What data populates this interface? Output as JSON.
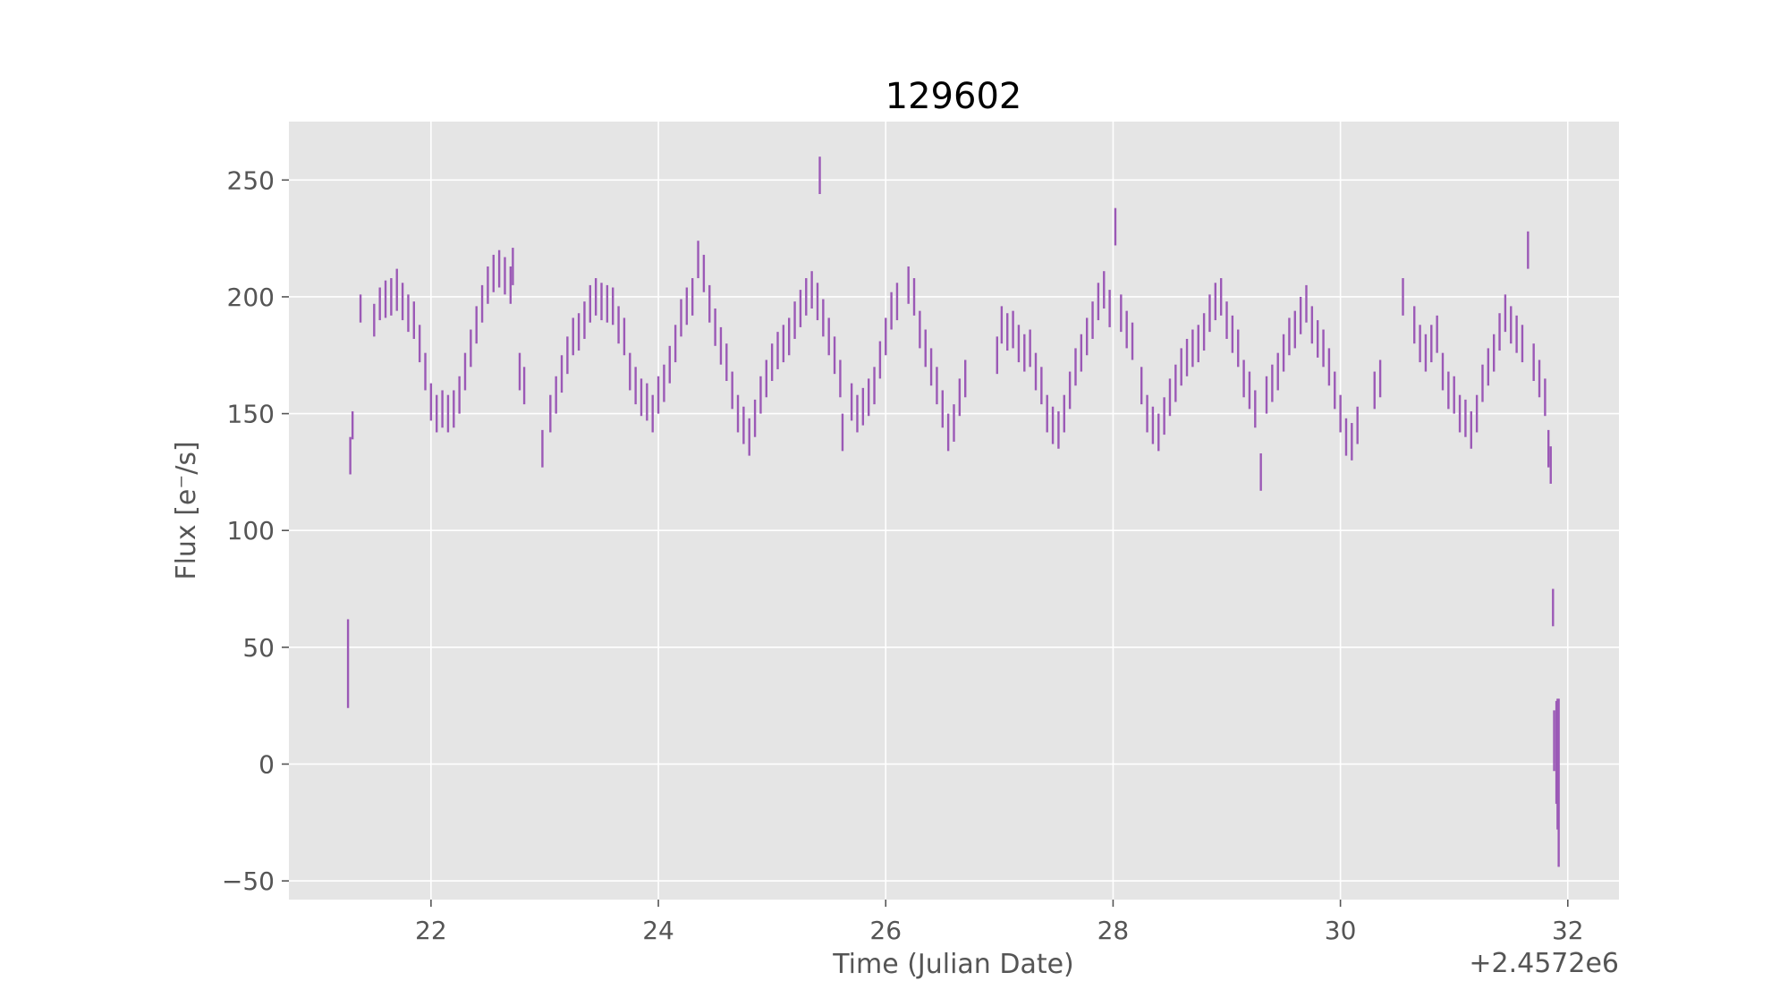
{
  "chart_data": {
    "type": "scatter",
    "style": "error-bar points",
    "title": "129602",
    "xlabel": "Time (Julian Date)",
    "ylabel": "Flux [e⁻/s]",
    "x_offset_label": "+2.4572e6",
    "x_offset": 2457200,
    "xlim": [
      2457220.75,
      2457232.45
    ],
    "ylim": [
      -58,
      275
    ],
    "xticks": [
      22,
      24,
      26,
      28,
      30,
      32
    ],
    "yticks": [
      -50,
      0,
      50,
      100,
      150,
      200,
      250
    ],
    "ytick_labels": [
      "−50",
      "0",
      "50",
      "100",
      "150",
      "200",
      "250"
    ],
    "grid": true,
    "background_color": "#e5e5e5",
    "series": [
      {
        "color": "#9b59b6",
        "points": [
          [
            2457221.27,
            43,
            19
          ],
          [
            2457221.29,
            132,
            8
          ],
          [
            2457221.31,
            145,
            6
          ],
          [
            2457221.38,
            195,
            6
          ],
          [
            2457221.5,
            190,
            7
          ],
          [
            2457221.55,
            197,
            7
          ],
          [
            2457221.6,
            199,
            8
          ],
          [
            2457221.65,
            200,
            8
          ],
          [
            2457221.7,
            203,
            9
          ],
          [
            2457221.75,
            198,
            8
          ],
          [
            2457221.8,
            193,
            8
          ],
          [
            2457221.85,
            190,
            8
          ],
          [
            2457221.9,
            180,
            8
          ],
          [
            2457221.95,
            168,
            8
          ],
          [
            2457222.0,
            155,
            8
          ],
          [
            2457222.05,
            150,
            8
          ],
          [
            2457222.1,
            152,
            8
          ],
          [
            2457222.15,
            150,
            8
          ],
          [
            2457222.2,
            152,
            8
          ],
          [
            2457222.25,
            158,
            8
          ],
          [
            2457222.3,
            168,
            8
          ],
          [
            2457222.35,
            178,
            8
          ],
          [
            2457222.4,
            188,
            8
          ],
          [
            2457222.45,
            197,
            8
          ],
          [
            2457222.5,
            205,
            8
          ],
          [
            2457222.55,
            210,
            8
          ],
          [
            2457222.6,
            212,
            8
          ],
          [
            2457222.65,
            209,
            8
          ],
          [
            2457222.7,
            205,
            8
          ],
          [
            2457222.72,
            213,
            8
          ],
          [
            2457222.78,
            168,
            8
          ],
          [
            2457222.82,
            162,
            8
          ],
          [
            2457222.98,
            135,
            8
          ],
          [
            2457223.05,
            150,
            8
          ],
          [
            2457223.1,
            158,
            8
          ],
          [
            2457223.15,
            167,
            8
          ],
          [
            2457223.2,
            175,
            8
          ],
          [
            2457223.25,
            183,
            8
          ],
          [
            2457223.3,
            185,
            8
          ],
          [
            2457223.35,
            190,
            8
          ],
          [
            2457223.4,
            197,
            8
          ],
          [
            2457223.45,
            200,
            8
          ],
          [
            2457223.5,
            198,
            8
          ],
          [
            2457223.55,
            197,
            8
          ],
          [
            2457223.6,
            196,
            8
          ],
          [
            2457223.65,
            188,
            8
          ],
          [
            2457223.7,
            183,
            8
          ],
          [
            2457223.75,
            168,
            8
          ],
          [
            2457223.8,
            162,
            8
          ],
          [
            2457223.85,
            157,
            8
          ],
          [
            2457223.9,
            155,
            8
          ],
          [
            2457223.95,
            150,
            8
          ],
          [
            2457224.0,
            158,
            8
          ],
          [
            2457224.05,
            163,
            8
          ],
          [
            2457224.1,
            171,
            8
          ],
          [
            2457224.15,
            180,
            8
          ],
          [
            2457224.2,
            191,
            8
          ],
          [
            2457224.25,
            196,
            8
          ],
          [
            2457224.3,
            200,
            8
          ],
          [
            2457224.35,
            216,
            8
          ],
          [
            2457224.4,
            210,
            8
          ],
          [
            2457224.45,
            197,
            8
          ],
          [
            2457224.5,
            187,
            8
          ],
          [
            2457224.55,
            179,
            8
          ],
          [
            2457224.6,
            172,
            8
          ],
          [
            2457224.65,
            160,
            8
          ],
          [
            2457224.7,
            150,
            8
          ],
          [
            2457224.75,
            145,
            8
          ],
          [
            2457224.8,
            140,
            8
          ],
          [
            2457224.85,
            148,
            8
          ],
          [
            2457224.9,
            158,
            8
          ],
          [
            2457224.95,
            165,
            8
          ],
          [
            2457225.0,
            172,
            8
          ],
          [
            2457225.05,
            177,
            8
          ],
          [
            2457225.1,
            180,
            8
          ],
          [
            2457225.15,
            183,
            8
          ],
          [
            2457225.2,
            190,
            8
          ],
          [
            2457225.25,
            195,
            8
          ],
          [
            2457225.3,
            200,
            8
          ],
          [
            2457225.35,
            203,
            8
          ],
          [
            2457225.4,
            198,
            8
          ],
          [
            2457225.42,
            252,
            8
          ],
          [
            2457225.45,
            191,
            8
          ],
          [
            2457225.5,
            183,
            8
          ],
          [
            2457225.55,
            175,
            8
          ],
          [
            2457225.6,
            165,
            8
          ],
          [
            2457225.62,
            142,
            8
          ],
          [
            2457225.7,
            155,
            8
          ],
          [
            2457225.75,
            150,
            8
          ],
          [
            2457225.8,
            153,
            8
          ],
          [
            2457225.85,
            157,
            8
          ],
          [
            2457225.9,
            162,
            8
          ],
          [
            2457225.95,
            173,
            8
          ],
          [
            2457226.0,
            183,
            8
          ],
          [
            2457226.05,
            194,
            8
          ],
          [
            2457226.1,
            198,
            8
          ],
          [
            2457226.2,
            205,
            8
          ],
          [
            2457226.25,
            200,
            8
          ],
          [
            2457226.3,
            186,
            8
          ],
          [
            2457226.35,
            178,
            8
          ],
          [
            2457226.4,
            170,
            8
          ],
          [
            2457226.45,
            162,
            8
          ],
          [
            2457226.5,
            152,
            8
          ],
          [
            2457226.55,
            142,
            8
          ],
          [
            2457226.6,
            146,
            8
          ],
          [
            2457226.65,
            157,
            8
          ],
          [
            2457226.7,
            165,
            8
          ],
          [
            2457226.98,
            175,
            8
          ],
          [
            2457227.02,
            188,
            8
          ],
          [
            2457227.07,
            185,
            8
          ],
          [
            2457227.12,
            186,
            8
          ],
          [
            2457227.17,
            180,
            8
          ],
          [
            2457227.22,
            176,
            8
          ],
          [
            2457227.27,
            178,
            8
          ],
          [
            2457227.32,
            168,
            8
          ],
          [
            2457227.37,
            162,
            8
          ],
          [
            2457227.42,
            150,
            8
          ],
          [
            2457227.47,
            145,
            8
          ],
          [
            2457227.52,
            143,
            8
          ],
          [
            2457227.57,
            150,
            8
          ],
          [
            2457227.62,
            160,
            8
          ],
          [
            2457227.67,
            170,
            8
          ],
          [
            2457227.72,
            176,
            8
          ],
          [
            2457227.77,
            183,
            8
          ],
          [
            2457227.82,
            190,
            8
          ],
          [
            2457227.87,
            198,
            8
          ],
          [
            2457227.92,
            203,
            8
          ],
          [
            2457227.97,
            195,
            8
          ],
          [
            2457228.02,
            230,
            8
          ],
          [
            2457228.07,
            193,
            8
          ],
          [
            2457228.12,
            186,
            8
          ],
          [
            2457228.17,
            181,
            8
          ],
          [
            2457228.25,
            162,
            8
          ],
          [
            2457228.3,
            150,
            8
          ],
          [
            2457228.35,
            145,
            8
          ],
          [
            2457228.4,
            142,
            8
          ],
          [
            2457228.45,
            149,
            8
          ],
          [
            2457228.5,
            157,
            8
          ],
          [
            2457228.55,
            163,
            8
          ],
          [
            2457228.6,
            170,
            8
          ],
          [
            2457228.65,
            174,
            8
          ],
          [
            2457228.7,
            178,
            8
          ],
          [
            2457228.75,
            180,
            8
          ],
          [
            2457228.8,
            185,
            8
          ],
          [
            2457228.85,
            193,
            8
          ],
          [
            2457228.9,
            198,
            8
          ],
          [
            2457228.95,
            200,
            8
          ],
          [
            2457229.0,
            190,
            8
          ],
          [
            2457229.05,
            184,
            8
          ],
          [
            2457229.1,
            178,
            8
          ],
          [
            2457229.15,
            165,
            8
          ],
          [
            2457229.2,
            160,
            8
          ],
          [
            2457229.25,
            152,
            8
          ],
          [
            2457229.3,
            125,
            8
          ],
          [
            2457229.35,
            158,
            8
          ],
          [
            2457229.4,
            163,
            8
          ],
          [
            2457229.45,
            168,
            8
          ],
          [
            2457229.5,
            176,
            8
          ],
          [
            2457229.55,
            183,
            8
          ],
          [
            2457229.6,
            186,
            8
          ],
          [
            2457229.65,
            192,
            8
          ],
          [
            2457229.7,
            197,
            8
          ],
          [
            2457229.75,
            188,
            8
          ],
          [
            2457229.8,
            182,
            8
          ],
          [
            2457229.85,
            178,
            8
          ],
          [
            2457229.9,
            170,
            8
          ],
          [
            2457229.95,
            160,
            8
          ],
          [
            2457230.0,
            150,
            8
          ],
          [
            2457230.05,
            140,
            8
          ],
          [
            2457230.1,
            138,
            8
          ],
          [
            2457230.15,
            145,
            8
          ],
          [
            2457230.3,
            160,
            8
          ],
          [
            2457230.35,
            165,
            8
          ],
          [
            2457230.55,
            200,
            8
          ],
          [
            2457230.65,
            188,
            8
          ],
          [
            2457230.7,
            180,
            8
          ],
          [
            2457230.75,
            176,
            8
          ],
          [
            2457230.8,
            180,
            8
          ],
          [
            2457230.85,
            184,
            8
          ],
          [
            2457230.9,
            168,
            8
          ],
          [
            2457230.95,
            160,
            8
          ],
          [
            2457231.0,
            158,
            8
          ],
          [
            2457231.05,
            150,
            8
          ],
          [
            2457231.1,
            148,
            8
          ],
          [
            2457231.15,
            143,
            8
          ],
          [
            2457231.2,
            150,
            8
          ],
          [
            2457231.25,
            163,
            8
          ],
          [
            2457231.3,
            170,
            8
          ],
          [
            2457231.35,
            176,
            8
          ],
          [
            2457231.4,
            185,
            8
          ],
          [
            2457231.45,
            193,
            8
          ],
          [
            2457231.5,
            188,
            8
          ],
          [
            2457231.55,
            184,
            8
          ],
          [
            2457231.6,
            180,
            8
          ],
          [
            2457231.65,
            220,
            8
          ],
          [
            2457231.7,
            172,
            8
          ],
          [
            2457231.75,
            165,
            8
          ],
          [
            2457231.8,
            157,
            8
          ],
          [
            2457231.83,
            135,
            8
          ],
          [
            2457231.85,
            128,
            8
          ],
          [
            2457231.87,
            67,
            8
          ],
          [
            2457231.88,
            10,
            13
          ],
          [
            2457231.9,
            5,
            22
          ],
          [
            2457231.91,
            0,
            28
          ],
          [
            2457231.92,
            -8,
            36
          ]
        ]
      }
    ]
  }
}
